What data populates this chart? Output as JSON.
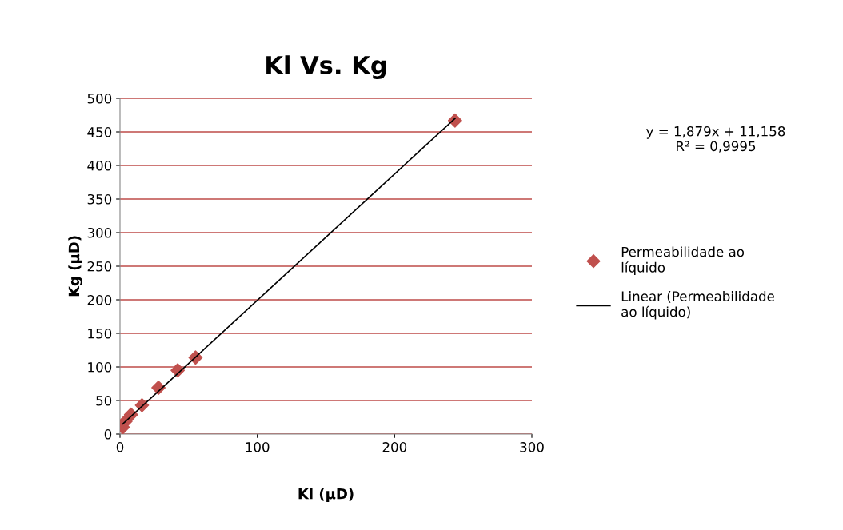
{
  "chart_data": {
    "type": "scatter",
    "title": "Kl Vs. Kg",
    "xlabel": "Kl (µD)",
    "ylabel": "Kg (µD)",
    "xlim": [
      0,
      300
    ],
    "xticks": [
      0,
      100,
      200,
      300
    ],
    "ylim": [
      0,
      500
    ],
    "yticks": [
      0,
      50,
      100,
      150,
      200,
      250,
      300,
      350,
      400,
      450,
      500
    ],
    "grid": "y",
    "legend": "right",
    "series": [
      {
        "name": "Permeabilidade ao líquido",
        "color": "#c0504d",
        "marker": "diamond",
        "x": [
          2,
          4,
          8,
          16,
          28,
          42,
          55,
          244
        ],
        "values": [
          10,
          19,
          29,
          43,
          69,
          95,
          114,
          467
        ]
      },
      {
        "name": "Linear (Permeabilidade ao líquido)",
        "type": "line",
        "marker": "none",
        "color": "#000000",
        "x": [
          2,
          244
        ],
        "values": [
          15,
          470
        ]
      }
    ],
    "annotations": [
      "y = 1,879x + 11,158\nR² = 0,9995"
    ]
  }
}
